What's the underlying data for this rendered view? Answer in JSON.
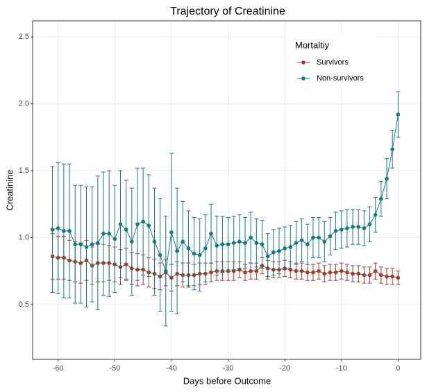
{
  "chart_data": {
    "type": "line",
    "title": "Trajectory of Creatinine",
    "x_label": "Days before Outcome",
    "y_label": "Creatinine",
    "legend_title": "Mortaltiy",
    "legend_position": "top-right",
    "grid": true,
    "x": [
      -61,
      -60,
      -59,
      -58,
      -57,
      -56,
      -55,
      -54,
      -53,
      -52,
      -51,
      -50,
      -49,
      -48,
      -47,
      -46,
      -45,
      -44,
      -43,
      -42,
      -41,
      -40,
      -39,
      -38,
      -37,
      -36,
      -35,
      -34,
      -33,
      -32,
      -31,
      -30,
      -29,
      -28,
      -27,
      -26,
      -25,
      -24,
      -23,
      -22,
      -21,
      -20,
      -19,
      -18,
      -17,
      -16,
      -15,
      -14,
      -13,
      -12,
      -11,
      -10,
      -9,
      -8,
      -7,
      -6,
      -5,
      -4,
      -3,
      -2,
      -1,
      0
    ],
    "xlim": [
      -64.5,
      4
    ],
    "xticks": [
      -60,
      -50,
      -40,
      -30,
      -20,
      -10,
      0
    ],
    "ylim": [
      0.09,
      2.62
    ],
    "yticks": [
      {
        "value": 0.5,
        "label": "0.5"
      },
      {
        "value": 1,
        "label": "1.0"
      },
      {
        "value": 1.5,
        "label": "1.5"
      },
      {
        "value": 2,
        "label": "2.0"
      },
      {
        "value": 2.5,
        "label": "2.5"
      }
    ],
    "series": [
      {
        "name": "Survivors",
        "color": "#a33b2b",
        "values": [
          0.86,
          0.85,
          0.85,
          0.83,
          0.82,
          0.81,
          0.83,
          0.79,
          0.81,
          0.81,
          0.81,
          0.8,
          0.78,
          0.8,
          0.77,
          0.76,
          0.76,
          0.74,
          0.73,
          0.71,
          0.74,
          0.7,
          0.73,
          0.72,
          0.72,
          0.72,
          0.73,
          0.73,
          0.74,
          0.75,
          0.75,
          0.75,
          0.75,
          0.76,
          0.74,
          0.75,
          0.75,
          0.79,
          0.77,
          0.76,
          0.76,
          0.77,
          0.76,
          0.75,
          0.75,
          0.74,
          0.74,
          0.75,
          0.73,
          0.74,
          0.74,
          0.75,
          0.74,
          0.73,
          0.73,
          0.72,
          0.72,
          0.75,
          0.72,
          0.71,
          0.71,
          0.7
        ],
        "errors": [
          0.17,
          0.16,
          0.16,
          0.15,
          0.15,
          0.15,
          0.15,
          0.14,
          0.14,
          0.14,
          0.13,
          0.13,
          0.13,
          0.12,
          0.12,
          0.12,
          0.11,
          0.11,
          0.11,
          0.1,
          0.1,
          0.1,
          0.09,
          0.09,
          0.09,
          0.08,
          0.08,
          0.08,
          0.07,
          0.07,
          0.07,
          0.07,
          0.07,
          0.06,
          0.06,
          0.06,
          0.06,
          0.06,
          0.06,
          0.06,
          0.06,
          0.06,
          0.06,
          0.06,
          0.06,
          0.06,
          0.06,
          0.06,
          0.06,
          0.06,
          0.06,
          0.06,
          0.06,
          0.06,
          0.06,
          0.06,
          0.06,
          0.06,
          0.06,
          0.06,
          0.06,
          0.05
        ]
      },
      {
        "name": "Non-survivors",
        "color": "#137a7f",
        "values": [
          1.06,
          1.07,
          1.05,
          1.05,
          0.95,
          0.95,
          0.93,
          0.95,
          0.96,
          1.03,
          1.03,
          0.99,
          1.1,
          1.06,
          0.97,
          1.1,
          1.12,
          1.09,
          0.97,
          0.87,
          0.75,
          1.04,
          0.9,
          0.97,
          0.92,
          0.88,
          0.87,
          0.92,
          1.03,
          0.94,
          0.95,
          0.95,
          0.96,
          0.97,
          0.96,
          1.0,
          0.96,
          0.95,
          0.86,
          0.89,
          0.9,
          0.92,
          0.93,
          0.96,
          0.98,
          0.95,
          1.0,
          1.0,
          0.97,
          1.01,
          1.05,
          1.06,
          1.07,
          1.08,
          1.08,
          1.07,
          1.1,
          1.17,
          1.29,
          1.44,
          1.66,
          1.92
        ],
        "errors": [
          0.47,
          0.49,
          0.5,
          0.5,
          0.44,
          0.44,
          0.45,
          0.43,
          0.5,
          0.46,
          0.47,
          0.4,
          0.4,
          0.37,
          0.4,
          0.42,
          0.4,
          0.38,
          0.4,
          0.42,
          0.41,
          0.59,
          0.47,
          0.3,
          0.28,
          0.27,
          0.27,
          0.25,
          0.22,
          0.22,
          0.21,
          0.2,
          0.2,
          0.2,
          0.19,
          0.19,
          0.18,
          0.18,
          0.17,
          0.17,
          0.17,
          0.16,
          0.16,
          0.16,
          0.16,
          0.15,
          0.15,
          0.15,
          0.15,
          0.14,
          0.14,
          0.14,
          0.14,
          0.13,
          0.13,
          0.13,
          0.13,
          0.13,
          0.13,
          0.15,
          0.14,
          0.17
        ]
      }
    ]
  }
}
